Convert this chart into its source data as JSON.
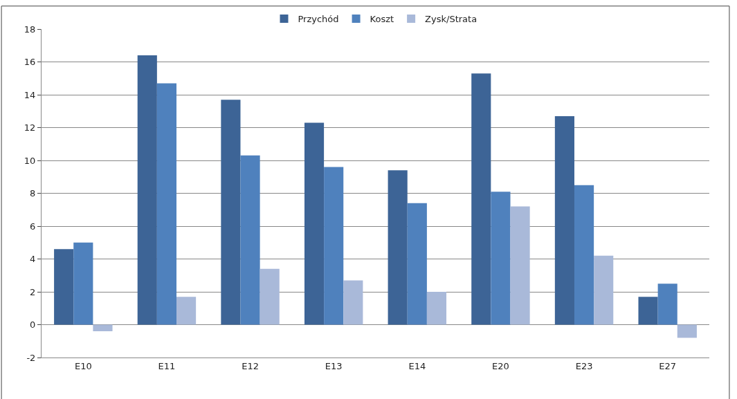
{
  "chart_data": {
    "type": "bar",
    "categories": [
      "E10",
      "E11",
      "E12",
      "E13",
      "E14",
      "E20",
      "E23",
      "E27"
    ],
    "series": [
      {
        "name": "Przychód",
        "color": "#3d6496",
        "values": [
          4.6,
          16.4,
          13.7,
          12.3,
          9.4,
          15.3,
          12.7,
          1.7
        ]
      },
      {
        "name": "Koszt",
        "color": "#4f81bd",
        "values": [
          5.0,
          14.7,
          10.3,
          9.6,
          7.4,
          8.1,
          8.5,
          2.5
        ]
      },
      {
        "name": "Zysk/Strata",
        "color": "#a9b9d9",
        "values": [
          -0.4,
          1.7,
          3.4,
          2.7,
          2.0,
          7.2,
          4.2,
          -0.8
        ]
      }
    ],
    "ylim": [
      -2,
      18
    ],
    "yticks": [
      -2,
      0,
      2,
      4,
      6,
      8,
      10,
      12,
      14,
      16,
      18
    ],
    "grid": "y",
    "legend": "top"
  }
}
